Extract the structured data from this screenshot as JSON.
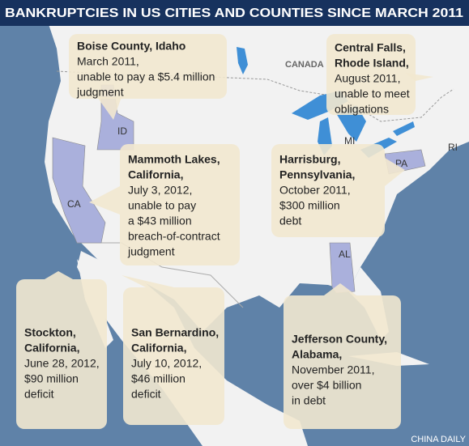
{
  "header": {
    "title": "BANKRUPTCIES IN US CITIES AND COUNTIES SINCE MARCH 2011"
  },
  "map_labels": {
    "country": "CANADA",
    "states": [
      "ID",
      "CA",
      "MI",
      "PA",
      "AL",
      "RI"
    ]
  },
  "callouts": [
    {
      "name": [
        "Boise County, Idaho"
      ],
      "details": [
        "March 2011,",
        "unable to pay a $5.4 million",
        "judgment"
      ]
    },
    {
      "name": [
        "Central Falls,",
        "Rhode Island,"
      ],
      "details": [
        "August 2011,",
        "unable to meet",
        "obligations"
      ]
    },
    {
      "name": [
        "Mammoth Lakes,",
        "California,"
      ],
      "details": [
        "July 3, 2012,",
        "unable to pay",
        "a $43 million",
        "breach-of-contract",
        "judgment"
      ]
    },
    {
      "name": [
        "Harrisburg,",
        "Pennsylvania,"
      ],
      "details": [
        "October 2011,",
        "$300 million",
        "debt"
      ]
    },
    {
      "name": [
        "Stockton,",
        "California,"
      ],
      "details": [
        "June 28, 2012,",
        "$90 million",
        "deficit"
      ]
    },
    {
      "name": [
        "San Bernardino,",
        "California,"
      ],
      "details": [
        "July 10, 2012,",
        "$46 million",
        "deficit"
      ]
    },
    {
      "name": [
        "Jefferson County,",
        "Alabama,"
      ],
      "details": [
        "November 2011,",
        "over $4 billion",
        "in debt"
      ]
    }
  ],
  "credit": "CHINA DAILY"
}
